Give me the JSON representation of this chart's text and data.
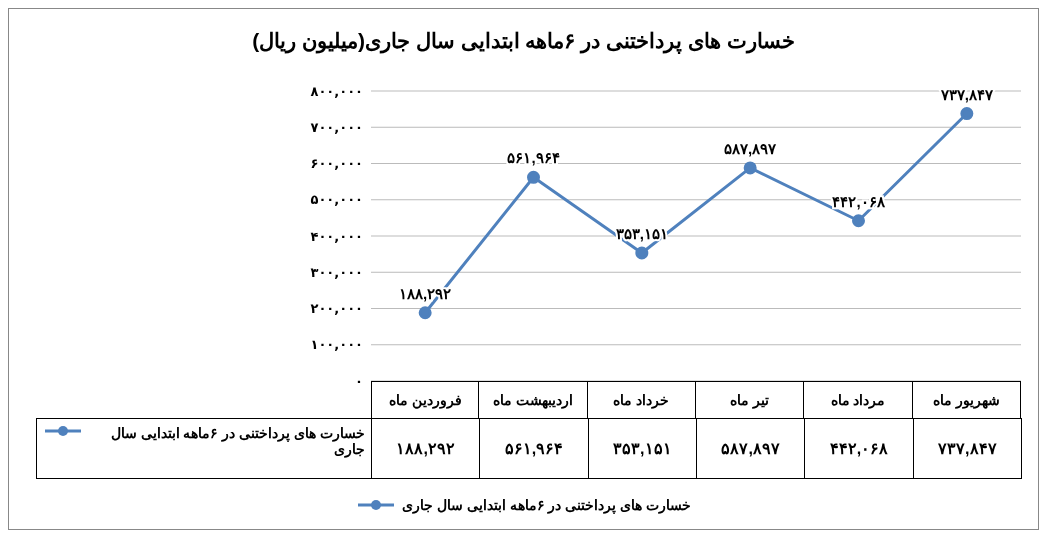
{
  "chart_data": {
    "type": "line",
    "title": "خسارت های پرداختنی در ۶ماهه ابتدایی سال جاری(میلیون ریال)",
    "categories": [
      "فروردین ماه",
      "اردیبهشت ماه",
      "خرداد ماه",
      "تیر ماه",
      "مرداد ماه",
      "شهریور ماه"
    ],
    "series": [
      {
        "name": "خسارت های پرداختنی در ۶ماهه ابتدایی سال جاری",
        "color": "#4f81bd",
        "values": [
          188292,
          561964,
          353151,
          587897,
          442068,
          737847
        ],
        "value_labels": [
          "۱۸۸,۲۹۲",
          "۵۶۱,۹۶۴",
          "۳۵۳,۱۵۱",
          "۵۸۷,۸۹۷",
          "۴۴۲,۰۶۸",
          "۷۳۷,۸۴۷"
        ]
      }
    ],
    "ylim": [
      0,
      800000
    ],
    "yticks": [
      {
        "value": 0,
        "label": "۰"
      },
      {
        "value": 100000,
        "label": "۱۰۰,۰۰۰"
      },
      {
        "value": 200000,
        "label": "۲۰۰,۰۰۰"
      },
      {
        "value": 300000,
        "label": "۳۰۰,۰۰۰"
      },
      {
        "value": 400000,
        "label": "۴۰۰,۰۰۰"
      },
      {
        "value": 500000,
        "label": "۵۰۰,۰۰۰"
      },
      {
        "value": 600000,
        "label": "۶۰۰,۰۰۰"
      },
      {
        "value": 700000,
        "label": "۷۰۰,۰۰۰"
      },
      {
        "value": 800000,
        "label": "۸۰۰,۰۰۰"
      }
    ],
    "grid": "y",
    "legend": "bottom",
    "marker": "circle",
    "line_style": "solid"
  }
}
